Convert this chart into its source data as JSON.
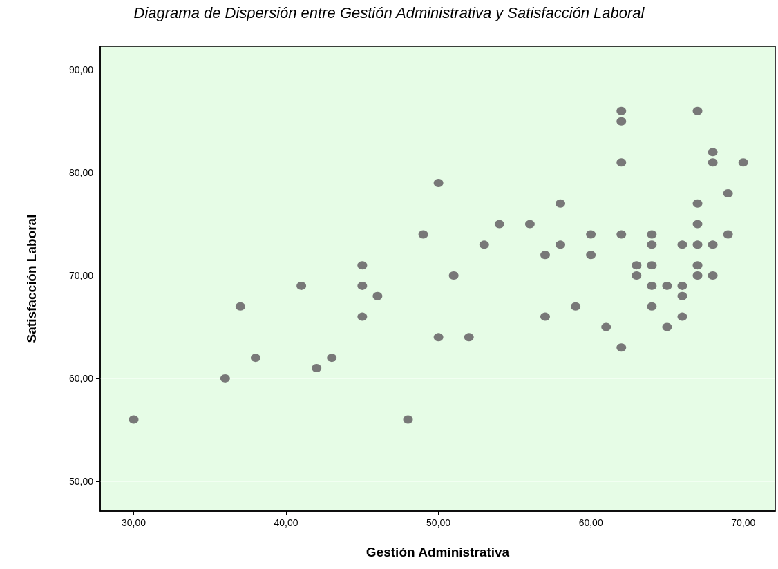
{
  "chart_data": {
    "type": "scatter",
    "title": "Diagrama de Dispersión entre Gestión Administrativa y Satisfacción Laboral",
    "xlabel": "Gestión Administrativa",
    "ylabel": "Satisfacción Laboral",
    "x": [
      30,
      36,
      37,
      38,
      41,
      42,
      43,
      45,
      45,
      45,
      46,
      48,
      49,
      50,
      50,
      51,
      52,
      53,
      54,
      56,
      57,
      57,
      58,
      58,
      59,
      60,
      60,
      61,
      62,
      62,
      62,
      62,
      62,
      63,
      63,
      64,
      64,
      64,
      64,
      64,
      65,
      65,
      66,
      66,
      66,
      66,
      67,
      67,
      67,
      67,
      67,
      67,
      68,
      68,
      68,
      68,
      69,
      69,
      70
    ],
    "values": [
      56,
      60,
      67,
      62,
      69,
      61,
      62,
      71,
      69,
      66,
      68,
      56,
      74,
      79,
      64,
      70,
      64,
      73,
      75,
      75,
      72,
      66,
      77,
      73,
      67,
      74,
      72,
      65,
      86,
      85,
      81,
      74,
      63,
      71,
      70,
      74,
      73,
      71,
      69,
      67,
      69,
      65,
      73,
      69,
      68,
      66,
      86,
      77,
      75,
      73,
      71,
      70,
      82,
      81,
      73,
      70,
      78,
      74,
      81
    ],
    "color": "#787878",
    "marker": "circle",
    "xlim": [
      27.8,
      72.1
    ],
    "ylim": [
      47.1,
      92.3
    ],
    "xticks": [
      {
        "value": 30,
        "label": "30,00"
      },
      {
        "value": 40,
        "label": "40,00"
      },
      {
        "value": 50,
        "label": "50,00"
      },
      {
        "value": 60,
        "label": "60,00"
      },
      {
        "value": 70,
        "label": "70,00"
      }
    ],
    "yticks": [
      {
        "value": 50,
        "label": "50,00"
      },
      {
        "value": 60,
        "label": "60,00"
      },
      {
        "value": 70,
        "label": "70,00"
      },
      {
        "value": 80,
        "label": "80,00"
      },
      {
        "value": 90,
        "label": "90,00"
      }
    ],
    "grid": "y"
  }
}
